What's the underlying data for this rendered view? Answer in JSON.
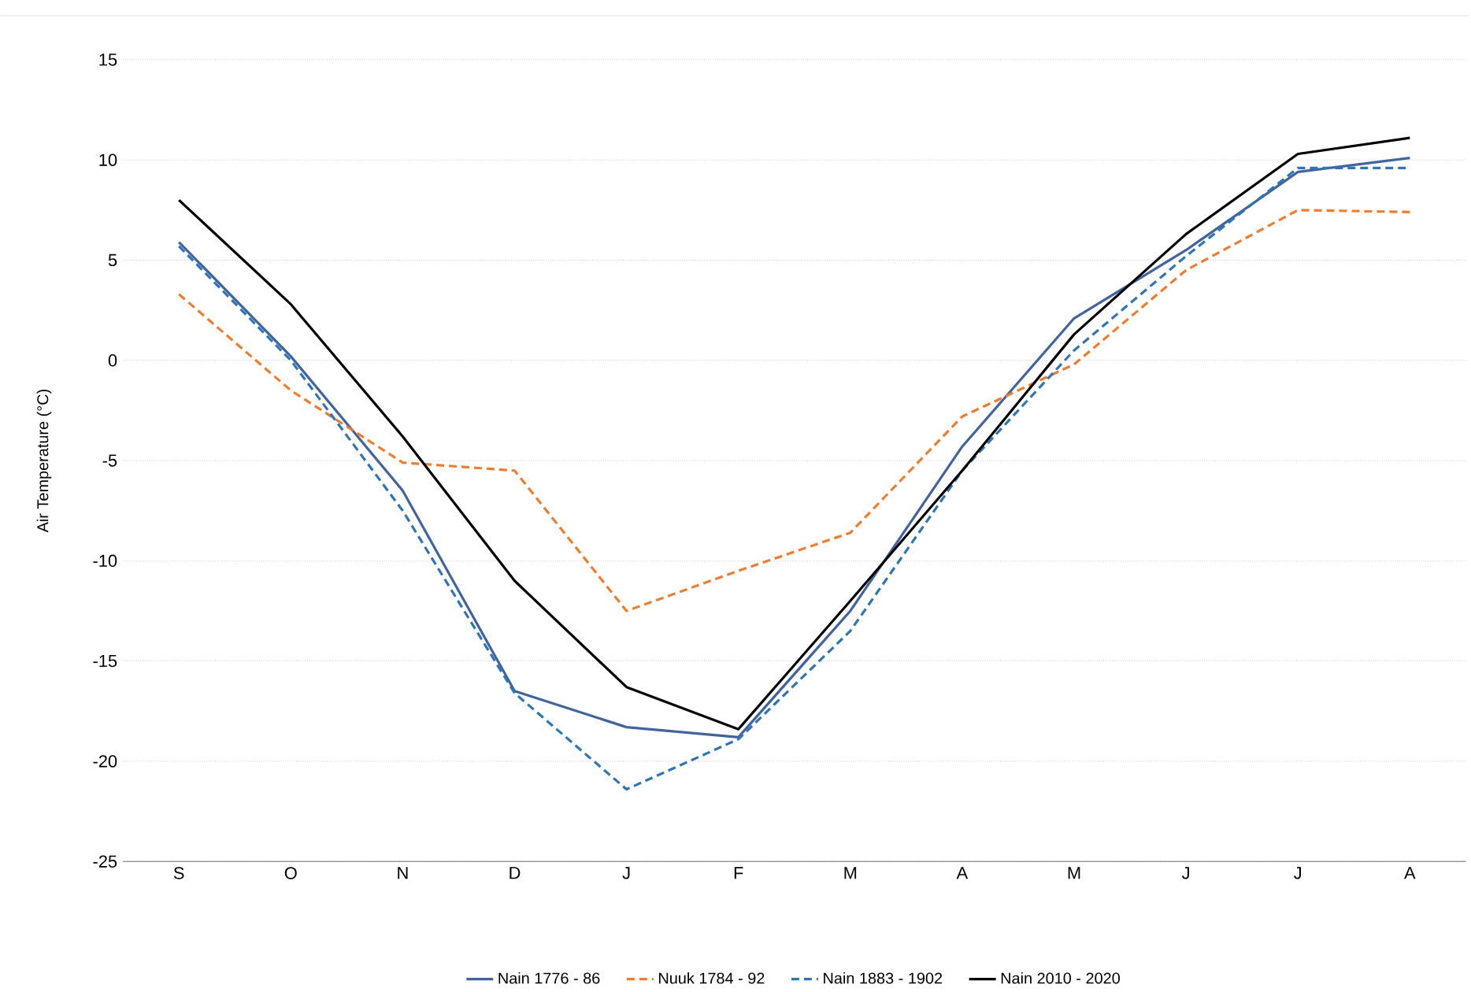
{
  "chart_data": {
    "type": "line",
    "ylabel": "Air Temperature (°C)",
    "categories": [
      "S",
      "O",
      "N",
      "D",
      "J",
      "F",
      "M",
      "A",
      "M",
      "J",
      "J",
      "A"
    ],
    "ylim": [
      -25,
      15
    ],
    "yticks": [
      -25,
      -20,
      -15,
      -10,
      -5,
      0,
      5,
      10,
      15
    ],
    "grid": "y",
    "legend": "bottom",
    "marker": "none",
    "series": [
      {
        "name": "Nain 1776 - 86",
        "color": "#41649f",
        "line_style": "solid",
        "values": [
          5.9,
          0.2,
          -6.5,
          -16.5,
          -18.3,
          -18.8,
          -12.5,
          -4.3,
          2.1,
          5.5,
          9.4,
          10.1
        ]
      },
      {
        "name": "Nuuk 1784 - 92",
        "color": "#ed7d31",
        "line_style": "dashed",
        "values": [
          3.3,
          -1.5,
          -5.1,
          -5.5,
          -12.5,
          -10.5,
          -8.6,
          -2.8,
          -0.2,
          4.5,
          7.5,
          7.4
        ]
      },
      {
        "name": "Nain 1883 - 1902",
        "color": "#2e75b6",
        "line_style": "dashed",
        "values": [
          5.7,
          0.0,
          -7.5,
          -16.6,
          -21.4,
          -18.9,
          -13.5,
          -5.5,
          0.5,
          5.2,
          9.6,
          9.6
        ]
      },
      {
        "name": "Nain 2010 - 2020",
        "color": "#000000",
        "line_style": "solid",
        "values": [
          8.0,
          2.8,
          -3.8,
          -11.0,
          -16.3,
          -18.4,
          -12.0,
          -5.5,
          1.3,
          6.3,
          10.3,
          11.1
        ]
      }
    ]
  }
}
